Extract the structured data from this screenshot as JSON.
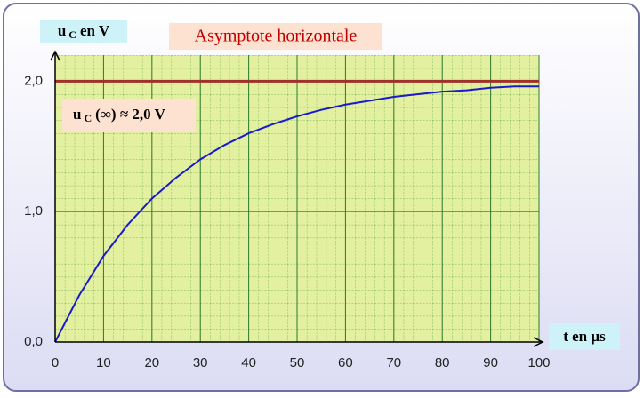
{
  "chart_data": {
    "type": "line",
    "title": "Asymptote horizontale",
    "y_label": {
      "main": "u",
      "sub": "C",
      "rest": "en V"
    },
    "x_label": "t en µs",
    "annotation": {
      "main": "u",
      "sub": "C",
      "rest": "(∞) ≈ 2,0 V"
    },
    "asymptote": 2.0,
    "asymptote_color": "#a0302a",
    "x": [
      0,
      5,
      10,
      15,
      20,
      25,
      30,
      35,
      40,
      45,
      50,
      55,
      60,
      65,
      70,
      75,
      80,
      85,
      90,
      95,
      100
    ],
    "series": [
      {
        "color": "#1a1acc",
        "values": [
          0,
          0.36,
          0.66,
          0.9,
          1.1,
          1.26,
          1.4,
          1.51,
          1.6,
          1.67,
          1.73,
          1.78,
          1.82,
          1.85,
          1.88,
          1.9,
          1.92,
          1.93,
          1.95,
          1.96,
          1.96
        ]
      }
    ],
    "xlim": [
      0,
      100
    ],
    "xticks": [
      0,
      10,
      20,
      30,
      40,
      50,
      60,
      70,
      80,
      90,
      100
    ],
    "ylim": [
      0,
      2.2
    ],
    "yticks": [
      {
        "value": 0,
        "label": "0,0"
      },
      {
        "value": 1,
        "label": "1,0"
      },
      {
        "value": 2,
        "label": "2,0"
      }
    ],
    "grid": true
  }
}
